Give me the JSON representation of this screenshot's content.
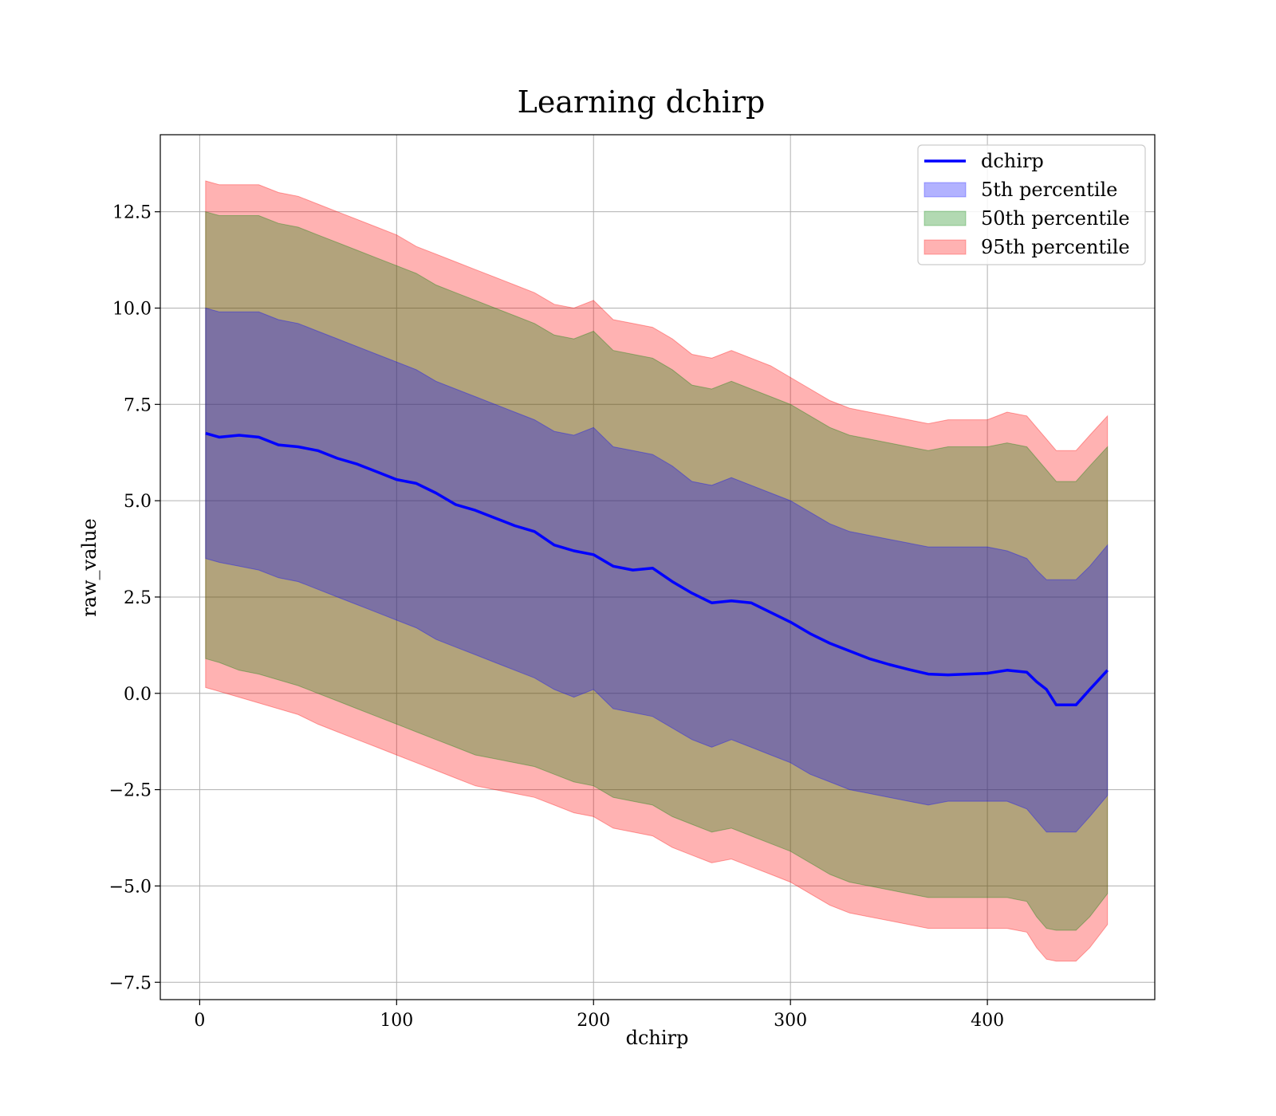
{
  "chart_data": {
    "type": "area",
    "title": "Learning dchirp",
    "xlabel": "dchirp",
    "ylabel": "raw_value",
    "xlim": [
      -20,
      485
    ],
    "ylim": [
      -7.95,
      14.5
    ],
    "xticks": [
      0,
      100,
      200,
      300,
      400
    ],
    "xtick_labels": [
      "0",
      "100",
      "200",
      "300",
      "400"
    ],
    "yticks": [
      -7.5,
      -5.0,
      -2.5,
      0.0,
      2.5,
      5.0,
      7.5,
      10.0,
      12.5
    ],
    "ytick_labels": [
      "−7.5",
      "−5.0",
      "−2.5",
      "0.0",
      "2.5",
      "5.0",
      "7.5",
      "10.0",
      "12.5"
    ],
    "grid": true,
    "legend_position": "top-right",
    "x": [
      3,
      10,
      20,
      30,
      40,
      50,
      60,
      70,
      80,
      90,
      100,
      110,
      120,
      130,
      140,
      150,
      160,
      170,
      180,
      190,
      200,
      210,
      220,
      230,
      240,
      250,
      260,
      270,
      280,
      290,
      300,
      310,
      320,
      330,
      340,
      350,
      360,
      370,
      380,
      390,
      400,
      410,
      420,
      425,
      430,
      435,
      445,
      452,
      461
    ],
    "line": {
      "name": "dchirp",
      "color": "#0000ff",
      "values": [
        6.75,
        6.65,
        6.7,
        6.65,
        6.45,
        6.4,
        6.3,
        6.1,
        5.95,
        5.75,
        5.55,
        5.45,
        5.2,
        4.9,
        4.75,
        4.55,
        4.35,
        4.2,
        3.85,
        3.7,
        3.6,
        3.3,
        3.2,
        3.25,
        2.9,
        2.6,
        2.35,
        2.4,
        2.35,
        2.1,
        1.85,
        1.55,
        1.3,
        1.1,
        0.9,
        0.75,
        0.62,
        0.5,
        0.48,
        0.5,
        0.52,
        0.6,
        0.55,
        0.3,
        0.1,
        -0.3,
        -0.3,
        0.1,
        0.6
      ]
    },
    "bands": [
      {
        "name": "95th percentile",
        "color": "#ff0000",
        "opacity": 0.3,
        "upper": [
          13.3,
          13.2,
          13.2,
          13.2,
          13.0,
          12.9,
          12.7,
          12.5,
          12.3,
          12.1,
          11.9,
          11.6,
          11.4,
          11.2,
          11.0,
          10.8,
          10.6,
          10.4,
          10.1,
          10.0,
          10.2,
          9.7,
          9.6,
          9.5,
          9.2,
          8.8,
          8.7,
          8.9,
          8.7,
          8.5,
          8.2,
          7.9,
          7.6,
          7.4,
          7.3,
          7.2,
          7.1,
          7.0,
          7.1,
          7.1,
          7.1,
          7.3,
          7.2,
          6.9,
          6.6,
          6.3,
          6.3,
          6.7,
          7.2
        ],
        "lower": [
          0.15,
          0.05,
          -0.1,
          -0.25,
          -0.4,
          -0.55,
          -0.8,
          -1.0,
          -1.2,
          -1.4,
          -1.6,
          -1.8,
          -2.0,
          -2.2,
          -2.4,
          -2.5,
          -2.6,
          -2.7,
          -2.9,
          -3.1,
          -3.2,
          -3.5,
          -3.6,
          -3.7,
          -4.0,
          -4.2,
          -4.4,
          -4.3,
          -4.5,
          -4.7,
          -4.9,
          -5.2,
          -5.5,
          -5.7,
          -5.8,
          -5.9,
          -6.0,
          -6.1,
          -6.1,
          -6.1,
          -6.1,
          -6.1,
          -6.2,
          -6.6,
          -6.9,
          -6.95,
          -6.95,
          -6.6,
          -6.0
        ]
      },
      {
        "name": "50th percentile",
        "color": "#008000",
        "opacity": 0.3,
        "upper": [
          12.5,
          12.4,
          12.4,
          12.4,
          12.2,
          12.1,
          11.9,
          11.7,
          11.5,
          11.3,
          11.1,
          10.9,
          10.6,
          10.4,
          10.2,
          10.0,
          9.8,
          9.6,
          9.3,
          9.2,
          9.4,
          8.9,
          8.8,
          8.7,
          8.4,
          8.0,
          7.9,
          8.1,
          7.9,
          7.7,
          7.5,
          7.2,
          6.9,
          6.7,
          6.6,
          6.5,
          6.4,
          6.3,
          6.4,
          6.4,
          6.4,
          6.5,
          6.4,
          6.1,
          5.8,
          5.5,
          5.5,
          5.9,
          6.4
        ],
        "lower": [
          0.9,
          0.8,
          0.6,
          0.5,
          0.35,
          0.2,
          0.0,
          -0.2,
          -0.4,
          -0.6,
          -0.8,
          -1.0,
          -1.2,
          -1.4,
          -1.6,
          -1.7,
          -1.8,
          -1.9,
          -2.1,
          -2.3,
          -2.4,
          -2.7,
          -2.8,
          -2.9,
          -3.2,
          -3.4,
          -3.6,
          -3.5,
          -3.7,
          -3.9,
          -4.1,
          -4.4,
          -4.7,
          -4.9,
          -5.0,
          -5.1,
          -5.2,
          -5.3,
          -5.3,
          -5.3,
          -5.3,
          -5.3,
          -5.4,
          -5.8,
          -6.1,
          -6.15,
          -6.15,
          -5.8,
          -5.2
        ]
      },
      {
        "name": "5th percentile",
        "color": "#0000ff",
        "opacity": 0.3,
        "upper": [
          10.0,
          9.9,
          9.9,
          9.9,
          9.7,
          9.6,
          9.4,
          9.2,
          9.0,
          8.8,
          8.6,
          8.4,
          8.1,
          7.9,
          7.7,
          7.5,
          7.3,
          7.1,
          6.8,
          6.7,
          6.9,
          6.4,
          6.3,
          6.2,
          5.9,
          5.5,
          5.4,
          5.6,
          5.4,
          5.2,
          5.0,
          4.7,
          4.4,
          4.2,
          4.1,
          4.0,
          3.9,
          3.8,
          3.8,
          3.8,
          3.8,
          3.7,
          3.5,
          3.2,
          2.95,
          2.95,
          2.95,
          3.3,
          3.85
        ],
        "lower": [
          3.5,
          3.4,
          3.3,
          3.2,
          3.0,
          2.9,
          2.7,
          2.5,
          2.3,
          2.1,
          1.9,
          1.7,
          1.4,
          1.2,
          1.0,
          0.8,
          0.6,
          0.4,
          0.1,
          -0.1,
          0.1,
          -0.4,
          -0.5,
          -0.6,
          -0.9,
          -1.2,
          -1.4,
          -1.2,
          -1.4,
          -1.6,
          -1.8,
          -2.1,
          -2.3,
          -2.5,
          -2.6,
          -2.7,
          -2.8,
          -2.9,
          -2.8,
          -2.8,
          -2.8,
          -2.8,
          -3.0,
          -3.3,
          -3.6,
          -3.6,
          -3.6,
          -3.2,
          -2.65
        ]
      }
    ],
    "legend": [
      {
        "label": "dchirp",
        "kind": "line",
        "color": "#0000ff"
      },
      {
        "label": "5th percentile",
        "kind": "patch",
        "color": "#0000ff"
      },
      {
        "label": "50th percentile",
        "kind": "patch",
        "color": "#008000"
      },
      {
        "label": "95th percentile",
        "kind": "patch",
        "color": "#ff0000"
      }
    ]
  }
}
